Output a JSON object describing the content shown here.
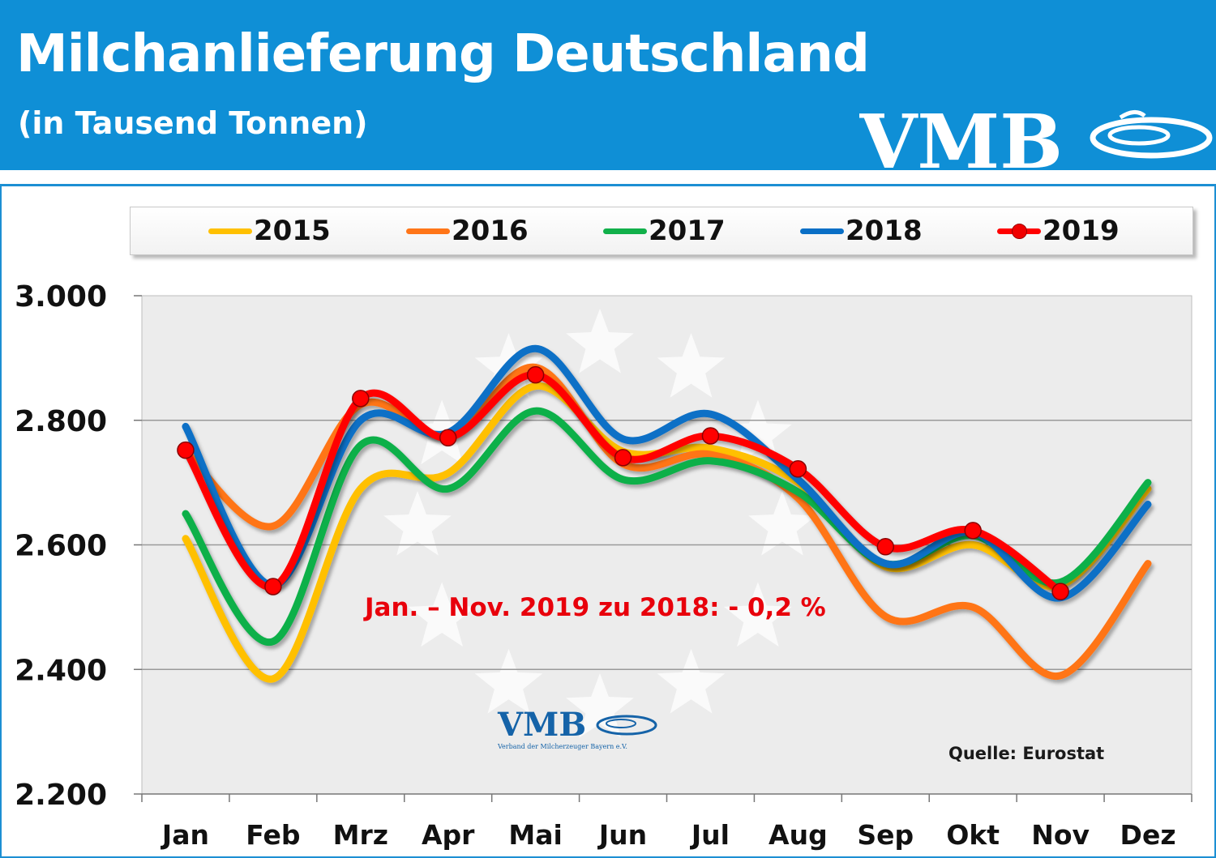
{
  "header": {
    "title": "Milchanlieferung Deutschland",
    "subtitle": "(in Tausend Tonnen)",
    "logo_text": "VMB"
  },
  "colors": {
    "header_bg": "#0f8fd6",
    "panel_border": "#1c8fd3",
    "plot_bg": "#ececec",
    "s2015": "#ffc000",
    "s2016": "#ff7518",
    "s2017": "#11b04a",
    "s2018": "#0a6fc6",
    "s2019": "#ff0000",
    "annotation": "#e8000b"
  },
  "chart_data": {
    "type": "line",
    "title": "Milchanlieferung Deutschland",
    "subtitle": "(in Tausend Tonnen)",
    "x": [
      "Jan",
      "Feb",
      "Mrz",
      "Apr",
      "Mai",
      "Jun",
      "Jul",
      "Aug",
      "Sep",
      "Okt",
      "Nov",
      "Dez"
    ],
    "ylim": [
      2200,
      3000
    ],
    "yticks": [
      "2.200",
      "2.400",
      "2.600",
      "2.800",
      "3.000"
    ],
    "grid": "horizontal",
    "legend_position": "top",
    "series": [
      {
        "name": "2015",
        "color": "#ffc000",
        "values": [
          2610,
          2385,
          2690,
          2715,
          2855,
          2750,
          2755,
          2700,
          2565,
          2600,
          2535,
          2690
        ]
      },
      {
        "name": "2016",
        "color": "#ff7518",
        "values": [
          2750,
          2630,
          2825,
          2775,
          2885,
          2730,
          2745,
          2675,
          2485,
          2500,
          2390,
          2570
        ]
      },
      {
        "name": "2017",
        "color": "#11b04a",
        "values": [
          2650,
          2445,
          2760,
          2690,
          2815,
          2705,
          2735,
          2685,
          2570,
          2615,
          2540,
          2700
        ]
      },
      {
        "name": "2018",
        "color": "#0a6fc6",
        "values": [
          2790,
          2535,
          2800,
          2780,
          2915,
          2770,
          2810,
          2705,
          2570,
          2620,
          2515,
          2665
        ]
      },
      {
        "name": "2019",
        "color": "#ff0000",
        "markers": true,
        "values": [
          2752,
          2533,
          2835,
          2772,
          2873,
          2740,
          2775,
          2722,
          2597,
          2623,
          2525,
          null
        ]
      }
    ],
    "annotations": [
      {
        "text": "Jan. –  Nov. 2019 zu 2018:  - 0,2 %"
      },
      {
        "text": "Quelle: Eurostat"
      }
    ],
    "watermark": {
      "text": "VMB",
      "subtext": "Verband der Milcherzeuger Bayern e.V."
    }
  }
}
